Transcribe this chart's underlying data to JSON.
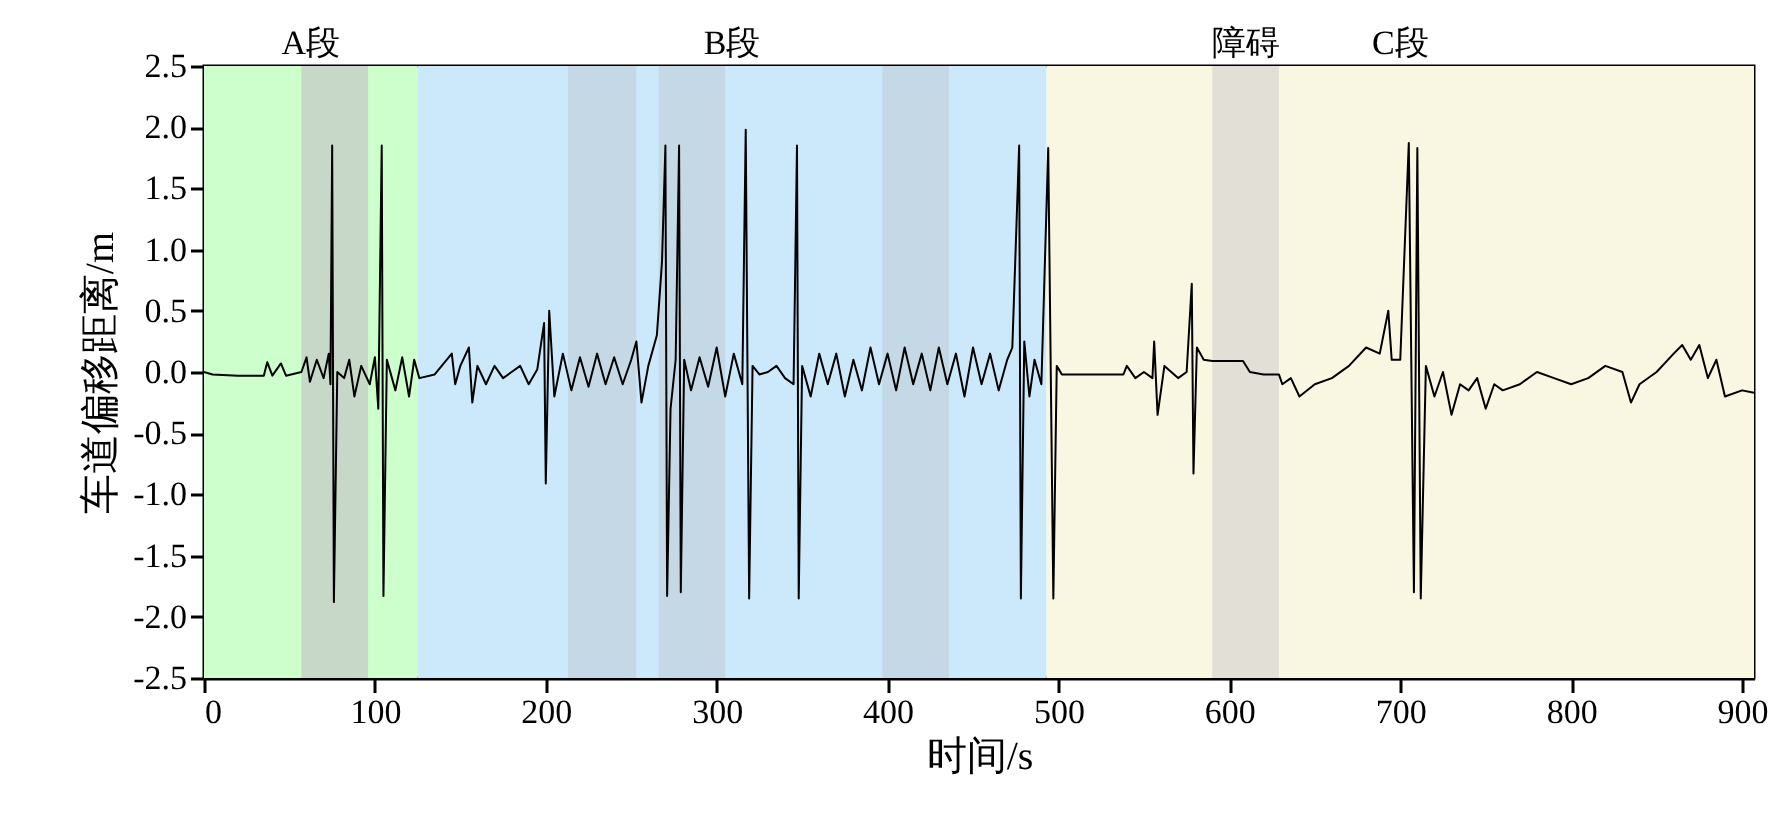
{
  "chart_data": {
    "type": "line",
    "xlabel": "时间/s",
    "ylabel": "车道偏移距离/m",
    "xlim": [
      0,
      907
    ],
    "xticks": [
      0,
      100,
      200,
      300,
      400,
      500,
      600,
      700,
      800,
      900
    ],
    "ylim": [
      -2.5,
      2.5
    ],
    "yticks": [
      {
        "value": -2.5,
        "label": "-2.5"
      },
      {
        "value": -2.0,
        "label": "-2.0"
      },
      {
        "value": -1.5,
        "label": "-1.5"
      },
      {
        "value": -1.0,
        "label": "-1.0"
      },
      {
        "value": -0.5,
        "label": "-0.5"
      },
      {
        "value": 0,
        "label": "0.0"
      },
      {
        "value": 0.5,
        "label": "0.5"
      },
      {
        "value": 1.0,
        "label": "1.0"
      },
      {
        "value": 1.5,
        "label": "1.5"
      },
      {
        "value": 2.0,
        "label": "2.0"
      },
      {
        "value": 2.5,
        "label": "2.5"
      }
    ],
    "grid": false,
    "line_style": "solid",
    "marker": "none",
    "bands": [
      {
        "axis": "x",
        "from": 0,
        "to": 125,
        "label": "A段",
        "color": "#ccffcc"
      },
      {
        "axis": "x",
        "from": 125,
        "to": 493,
        "label": "B段",
        "color": "#cce9fb"
      },
      {
        "axis": "x",
        "from": 493,
        "to": 907,
        "label": "C段",
        "color": "#f9f7e1"
      },
      {
        "axis": "x",
        "from": 57,
        "to": 96,
        "color": "#c8d8c8"
      },
      {
        "axis": "x",
        "from": 213,
        "to": 253,
        "color": "#c4d9e5"
      },
      {
        "axis": "x",
        "from": 266,
        "to": 305,
        "color": "#c4d9e5"
      },
      {
        "axis": "x",
        "from": 397,
        "to": 436,
        "color": "#c4d9e5"
      },
      {
        "axis": "x",
        "from": 590,
        "to": 629,
        "label": "障碍",
        "color": "#e2e0d6"
      }
    ],
    "series": [
      {
        "color": "#000000",
        "x": [
          0,
          5,
          20,
          35,
          37,
          40,
          45,
          48,
          57,
          60,
          62,
          66,
          70,
          73,
          74,
          75,
          76,
          78,
          82,
          85,
          88,
          92,
          97,
          100,
          102,
          104,
          105,
          107,
          112,
          116,
          120,
          123,
          126,
          135,
          145,
          147,
          150,
          155,
          157,
          160,
          165,
          170,
          175,
          180,
          185,
          190,
          195,
          199,
          200,
          202,
          205,
          210,
          215,
          220,
          225,
          230,
          235,
          240,
          245,
          250,
          253,
          256,
          260,
          265,
          268,
          270,
          271,
          273,
          276,
          278,
          279,
          281,
          285,
          290,
          295,
          300,
          305,
          310,
          315,
          317,
          319,
          321,
          325,
          330,
          335,
          340,
          345,
          347,
          348,
          350,
          355,
          360,
          365,
          370,
          375,
          380,
          385,
          390,
          395,
          400,
          405,
          410,
          415,
          420,
          425,
          430,
          435,
          440,
          445,
          450,
          455,
          460,
          465,
          470,
          473,
          477,
          478,
          480,
          483,
          486,
          490,
          494,
          497,
          499,
          502,
          510,
          520,
          538,
          540,
          545,
          550,
          555,
          556,
          558,
          562,
          570,
          575,
          578,
          579,
          581,
          585,
          590,
          600,
          608,
          612,
          620,
          629,
          631,
          636,
          641,
          650,
          660,
          670,
          680,
          688,
          693,
          695,
          700,
          705,
          708,
          710,
          712,
          715,
          720,
          725,
          730,
          735,
          740,
          745,
          750,
          755,
          760,
          770,
          780,
          790,
          800,
          810,
          820,
          830,
          835,
          840,
          850,
          860,
          865,
          870,
          875,
          880,
          885,
          890,
          900,
          907
        ],
        "values": [
          0.0,
          -0.02,
          -0.03,
          -0.03,
          0.08,
          -0.03,
          0.07,
          -0.03,
          0.0,
          0.12,
          -0.08,
          0.1,
          -0.05,
          0.15,
          -0.1,
          1.85,
          -1.88,
          0.0,
          -0.05,
          0.1,
          -0.2,
          0.05,
          -0.1,
          0.12,
          -0.3,
          1.85,
          -1.83,
          0.1,
          -0.15,
          0.12,
          -0.2,
          0.1,
          -0.05,
          -0.02,
          0.15,
          -0.1,
          0.05,
          0.2,
          -0.25,
          0.05,
          -0.1,
          0.05,
          -0.05,
          0.0,
          0.05,
          -0.1,
          0.02,
          0.4,
          -0.91,
          0.5,
          -0.2,
          0.15,
          -0.15,
          0.12,
          -0.12,
          0.15,
          -0.1,
          0.12,
          -0.1,
          0.1,
          0.25,
          -0.25,
          0.05,
          0.3,
          0.9,
          1.85,
          -1.83,
          -0.3,
          0.1,
          1.85,
          -1.8,
          0.1,
          -0.15,
          0.12,
          -0.12,
          0.2,
          -0.2,
          0.15,
          -0.1,
          1.98,
          -1.85,
          0.05,
          -0.02,
          0.0,
          0.05,
          -0.05,
          -0.1,
          1.85,
          -1.85,
          0.05,
          -0.2,
          0.15,
          -0.1,
          0.15,
          -0.2,
          0.1,
          -0.15,
          0.2,
          -0.1,
          0.15,
          -0.15,
          0.2,
          -0.1,
          0.15,
          -0.15,
          0.2,
          -0.1,
          0.15,
          -0.2,
          0.2,
          -0.1,
          0.15,
          -0.15,
          0.1,
          0.2,
          1.85,
          -1.85,
          0.25,
          -0.2,
          0.1,
          -0.1,
          1.83,
          -1.85,
          0.05,
          -0.02,
          -0.02,
          -0.02,
          -0.02,
          0.05,
          -0.05,
          0.0,
          -0.05,
          0.25,
          -0.35,
          0.05,
          -0.05,
          0.0,
          0.72,
          -0.83,
          0.2,
          0.1,
          0.09,
          0.09,
          0.09,
          0.0,
          -0.02,
          -0.02,
          -0.1,
          -0.05,
          -0.2,
          -0.1,
          -0.05,
          0.05,
          0.2,
          0.15,
          0.5,
          0.1,
          0.1,
          1.87,
          -1.8,
          1.83,
          -1.85,
          0.05,
          -0.2,
          0.0,
          -0.35,
          -0.1,
          -0.15,
          -0.05,
          -0.3,
          -0.1,
          -0.15,
          -0.1,
          0.0,
          -0.05,
          -0.1,
          -0.05,
          0.05,
          0.0,
          -0.25,
          -0.1,
          0.0,
          0.15,
          0.22,
          0.1,
          0.22,
          -0.05,
          0.1,
          -0.2,
          -0.15,
          -0.17
        ]
      }
    ]
  }
}
